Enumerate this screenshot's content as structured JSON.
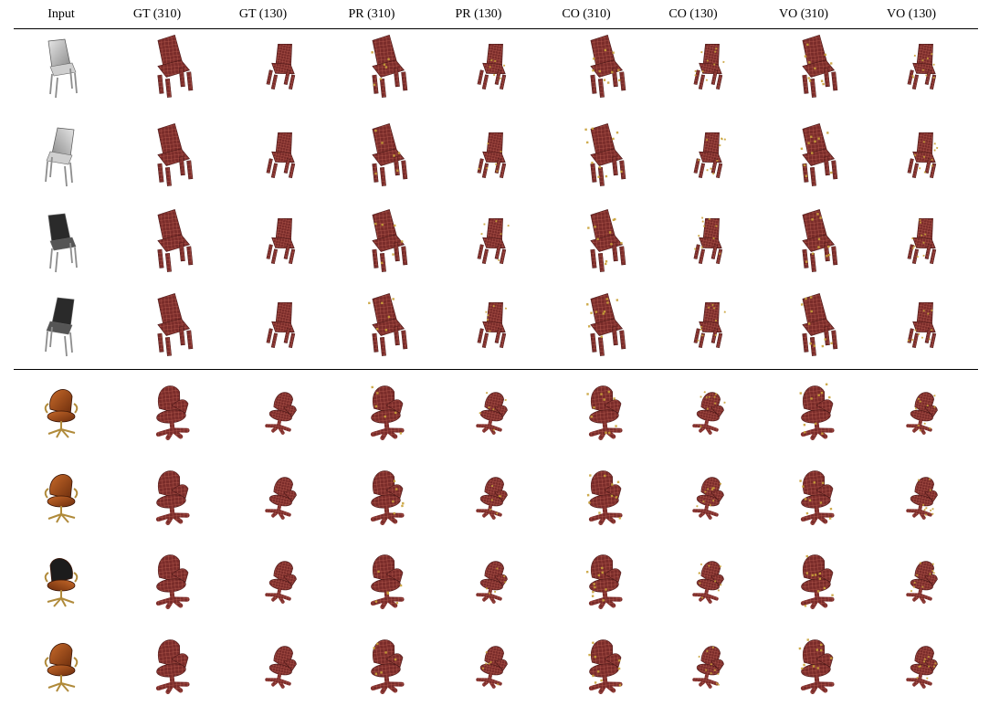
{
  "columns": [
    "Input",
    "GT (310)",
    "GT (130)",
    "PR (310)",
    "PR (130)",
    "CO (310)",
    "CO (130)",
    "VO (310)",
    "VO (130)"
  ],
  "groups": [
    {
      "input_style": "gray-plastic-chair",
      "input_icons": [
        "gray-chair-view-1",
        "gray-chair-view-2",
        "black-chair-view-3",
        "black-chair-view-4"
      ],
      "voxel_shape": "four-leg-chair",
      "row_count": 4
    },
    {
      "input_style": "brown-office-chair",
      "input_icons": [
        "office-chair-view-1",
        "office-chair-view-2",
        "office-chair-view-3",
        "office-chair-view-4"
      ],
      "voxel_shape": "swivel-office-chair",
      "row_count": 4
    }
  ],
  "colors": {
    "voxel_fill": "#7a2c2a",
    "voxel_grid": "#b65a4e",
    "voxel_dark": "#4a1716",
    "artifact": "#c9a23a",
    "input_gray": "#a9a9a9",
    "input_black": "#2a2a2a",
    "input_brown": "#8a3b12",
    "rule": "#000000"
  }
}
